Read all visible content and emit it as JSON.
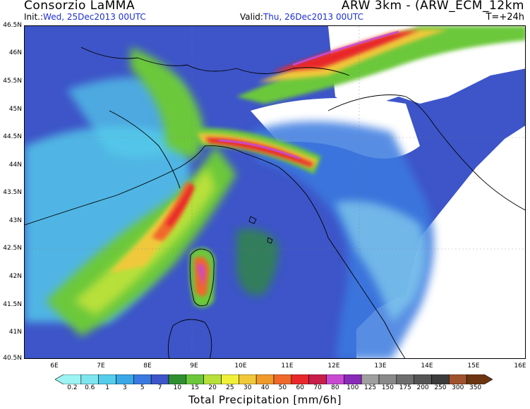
{
  "header": {
    "title": "Consorzio LaMMA",
    "model": "ARW 3km - (ARW_ECM_12km",
    "init_label": "Init.:",
    "init_value": "Wed, 25Dec2013 00UTC",
    "valid_label": "Valid:",
    "valid_value": "Thu, 26Dec2013 00UTC",
    "step": "T=+24h"
  },
  "map": {
    "lat_labels": [
      "46.5N",
      "46N",
      "45.5N",
      "45N",
      "44.5N",
      "44N",
      "43.5N",
      "43N",
      "42.5N",
      "42N",
      "41.5N",
      "41N",
      "40.5N"
    ],
    "lon_labels": [
      "6E",
      "7E",
      "8E",
      "9E",
      "10E",
      "11E",
      "12E",
      "13E",
      "14E",
      "15E",
      "16E"
    ],
    "extent": {
      "lon_min": 5.5,
      "lon_max": 16.1,
      "lat_min": 40.5,
      "lat_max": 46.5
    }
  },
  "colorbar": {
    "title": "Total Precipitation [mm/6h]",
    "labels": [
      "0.2",
      "0.6",
      "1",
      "3",
      "5",
      "7",
      "10",
      "15",
      "20",
      "25",
      "30",
      "40",
      "50",
      "60",
      "70",
      "80",
      "100",
      "125",
      "150",
      "175",
      "200",
      "250",
      "300",
      "350"
    ],
    "colors": [
      "#9ef3f3",
      "#7fe6f0",
      "#55cdeb",
      "#3aa8e6",
      "#3a7ae0",
      "#3d55c8",
      "#2f8f2f",
      "#6cc83a",
      "#b8e03a",
      "#f0f03a",
      "#f0c83a",
      "#f09a2a",
      "#f0682a",
      "#e8282a",
      "#c81e4a",
      "#c84ad2",
      "#8a2ab8",
      "#a0a0a0",
      "#8a8a8a",
      "#6e6e6e",
      "#555555",
      "#3c3c3c",
      "#a0522d",
      "#6b3510"
    ]
  }
}
